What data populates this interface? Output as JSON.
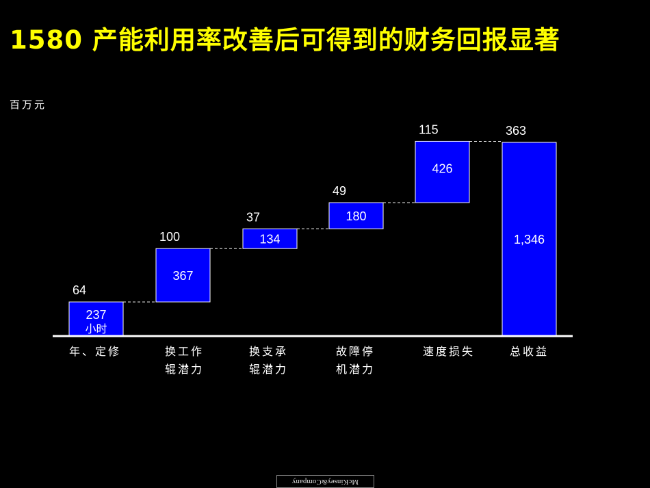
{
  "title": "1580 产能利用率改善后可得到的财务回报显著",
  "unit_label": "百万元",
  "logo_text": "McKinsey&Company",
  "colors": {
    "background": "#000000",
    "title": "#FFFF00",
    "bar": "#0000FF",
    "bar_border": "#FFFFFF",
    "text": "#FFFFFF"
  },
  "chart_data": {
    "type": "bar",
    "subtype": "waterfall",
    "categories": [
      "年、定修",
      "换工作\n辊潜力",
      "换支承\n辊潜力",
      "故障停\n机潜力",
      "速度损失",
      "总收益"
    ],
    "series": [
      {
        "values": [
          64,
          100,
          37,
          49,
          115,
          363
        ]
      }
    ],
    "bar_labels": [
      "237",
      "367",
      "134",
      "180",
      "426",
      "1,346"
    ],
    "bar_sublabels": [
      "小时",
      "",
      "",
      "",
      "",
      ""
    ],
    "total_index": 5,
    "ylim": [
      0,
      363
    ],
    "grid": false,
    "legend": "none"
  }
}
